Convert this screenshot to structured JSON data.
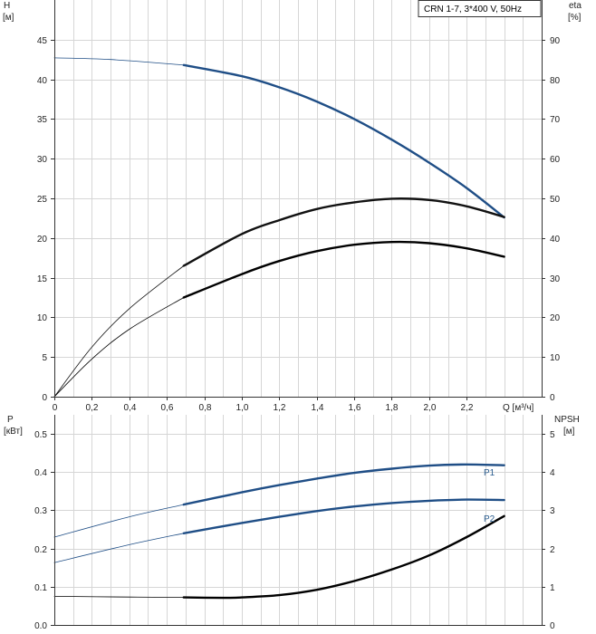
{
  "chart_data": [
    {
      "type": "line",
      "legend": "CRN 1-7, 3*400 V, 50Hz",
      "xlabel": "Q [м³/ч]",
      "xlim": [
        0,
        2.6
      ],
      "xticks": [
        0,
        0.2,
        0.4,
        0.6,
        0.8,
        1.0,
        1.2,
        1.4,
        1.6,
        1.8,
        2.0,
        2.2
      ],
      "xtick_labels": [
        "0",
        "0,2",
        "0,4",
        "0,6",
        "0,8",
        "1,0",
        "1,2",
        "1,4",
        "1,6",
        "1,8",
        "2,0",
        "2,2"
      ],
      "ylabel_left": "H",
      "ylabel_left_unit": "[м]",
      "ylim_left": [
        0,
        50
      ],
      "yticks_left": [
        0,
        5,
        10,
        15,
        20,
        25,
        30,
        35,
        40,
        45
      ],
      "ylabel_right": "eta",
      "ylabel_right_unit": "[%]",
      "ylim_right": [
        0,
        100
      ],
      "yticks_right": [
        0,
        10,
        20,
        30,
        40,
        50,
        60,
        70,
        80,
        90
      ],
      "grid": true,
      "legend_position": "top-right",
      "operating_range": [
        0.69,
        2.4
      ],
      "series": [
        {
          "axis": "left",
          "color": "#1f4e86",
          "x": [
            0,
            0.3,
            0.69,
            1.0,
            1.2,
            1.4,
            1.6,
            1.8,
            2.0,
            2.2,
            2.4
          ],
          "y": [
            42.7,
            42.5,
            41.8,
            40.4,
            39.0,
            37.2,
            35.0,
            32.4,
            29.5,
            26.3,
            22.6
          ]
        },
        {
          "axis": "right",
          "color": "#111111",
          "x": [
            0,
            0.2,
            0.4,
            0.69,
            1.0,
            1.2,
            1.4,
            1.6,
            1.8,
            2.0,
            2.2,
            2.4
          ],
          "y": [
            0,
            12.5,
            22.2,
            33.0,
            41.0,
            44.5,
            47.3,
            49.0,
            49.9,
            49.6,
            48.0,
            45.3
          ]
        },
        {
          "axis": "right",
          "color": "#000000",
          "x": [
            0,
            0.2,
            0.4,
            0.69,
            1.0,
            1.2,
            1.4,
            1.6,
            1.8,
            2.0,
            2.2,
            2.4
          ],
          "y": [
            0,
            9.5,
            17.0,
            25.0,
            30.9,
            34.2,
            36.7,
            38.3,
            39.0,
            38.7,
            37.4,
            35.3
          ]
        }
      ]
    },
    {
      "type": "line",
      "xlim": [
        0,
        2.6
      ],
      "xticks": [
        0,
        0.2,
        0.4,
        0.6,
        0.8,
        1.0,
        1.2,
        1.4,
        1.6,
        1.8,
        2.0,
        2.2
      ],
      "ylabel_left": "P",
      "ylabel_left_unit": "[кВт]",
      "ylim_left": [
        0,
        0.55
      ],
      "yticks_left": [
        0,
        0.1,
        0.2,
        0.3,
        0.4,
        0.5
      ],
      "ytick_labels_left": [
        "0.0",
        "0.1",
        "0.2",
        "0.3",
        "0.4",
        "0.5"
      ],
      "ylabel_right": "NPSH",
      "ylabel_right_unit": "[м]",
      "ylim_right": [
        0,
        5.5
      ],
      "yticks_right": [
        0,
        1,
        2,
        3,
        4,
        5
      ],
      "grid": true,
      "operating_range": [
        0.69,
        2.4
      ],
      "series": [
        {
          "name": "P1",
          "axis": "left",
          "color": "#1f4e86",
          "x": [
            0,
            0.4,
            0.69,
            1.0,
            1.2,
            1.4,
            1.6,
            1.8,
            2.0,
            2.2,
            2.4
          ],
          "y": [
            0.23,
            0.283,
            0.315,
            0.347,
            0.366,
            0.383,
            0.398,
            0.409,
            0.417,
            0.42,
            0.418
          ]
        },
        {
          "name": "P2",
          "axis": "left",
          "color": "#1f4e86",
          "x": [
            0,
            0.4,
            0.69,
            1.0,
            1.2,
            1.4,
            1.6,
            1.8,
            2.0,
            2.2,
            2.4
          ],
          "y": [
            0.163,
            0.21,
            0.24,
            0.267,
            0.283,
            0.298,
            0.31,
            0.319,
            0.325,
            0.328,
            0.327
          ]
        },
        {
          "axis": "right",
          "color": "#000000",
          "x": [
            0,
            0.4,
            0.69,
            0.9,
            1.0,
            1.2,
            1.4,
            1.6,
            1.8,
            2.0,
            2.2,
            2.4
          ],
          "y": [
            0.75,
            0.73,
            0.72,
            0.71,
            0.72,
            0.78,
            0.92,
            1.15,
            1.45,
            1.82,
            2.3,
            2.85
          ]
        }
      ]
    }
  ]
}
